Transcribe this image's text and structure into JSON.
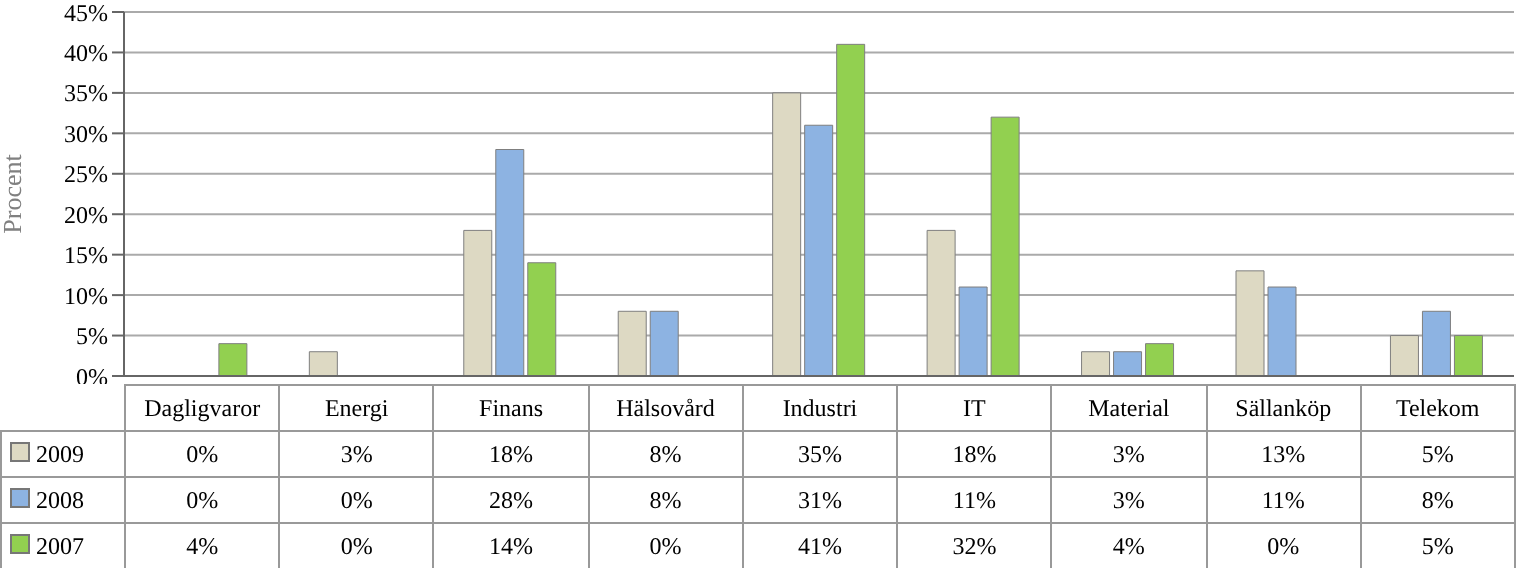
{
  "chart_data": {
    "type": "bar",
    "ylabel": "Procent",
    "categories": [
      "Dagligvaror",
      "Energi",
      "Finans",
      "Hälsovård",
      "Industri",
      "IT",
      "Material",
      "Sällanköp",
      "Telekom"
    ],
    "series": [
      {
        "name": "2009",
        "color": "#ddd9c3",
        "values": [
          0,
          3,
          18,
          8,
          35,
          18,
          3,
          13,
          5
        ],
        "value_labels": [
          "0%",
          "3%",
          "18%",
          "8%",
          "35%",
          "18%",
          "3%",
          "13%",
          "5%"
        ]
      },
      {
        "name": "2008",
        "color": "#8db3e2",
        "values": [
          0,
          0,
          28,
          8,
          31,
          11,
          3,
          11,
          8
        ],
        "value_labels": [
          "0%",
          "0%",
          "28%",
          "8%",
          "31%",
          "11%",
          "3%",
          "11%",
          "8%"
        ]
      },
      {
        "name": "2007",
        "color": "#92d050",
        "values": [
          4,
          0,
          14,
          0,
          41,
          32,
          4,
          0,
          5
        ],
        "value_labels": [
          "4%",
          "0%",
          "14%",
          "0%",
          "41%",
          "32%",
          "4%",
          "0%",
          "5%"
        ]
      }
    ],
    "ylim": [
      0,
      45
    ],
    "yticks": [
      {
        "value": 0,
        "label": "0%"
      },
      {
        "value": 5,
        "label": "5%"
      },
      {
        "value": 10,
        "label": "10%"
      },
      {
        "value": 15,
        "label": "15%"
      },
      {
        "value": 20,
        "label": "20%"
      },
      {
        "value": 25,
        "label": "25%"
      },
      {
        "value": 30,
        "label": "30%"
      },
      {
        "value": 35,
        "label": "35%"
      },
      {
        "value": 40,
        "label": "40%"
      },
      {
        "value": 45,
        "label": "45%"
      }
    ],
    "grid": "y",
    "legend": "bottom"
  }
}
